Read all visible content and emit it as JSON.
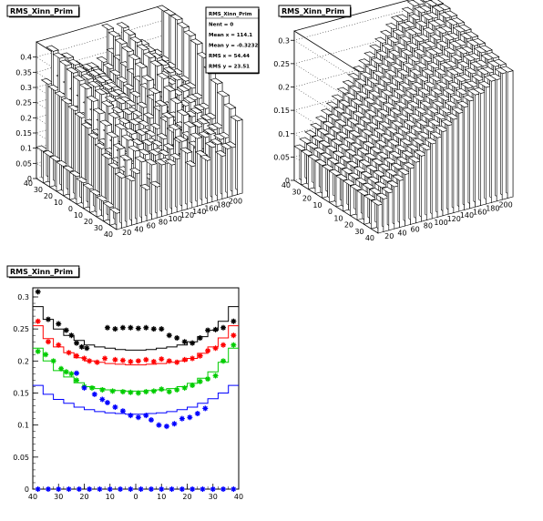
{
  "chart_data": [
    {
      "type": "lego3d",
      "title": "RMS_Xinn_Prim",
      "stats": [
        {
          "label": "RMS_Xinn_Prim",
          "value": ""
        },
        {
          "label": "Nent = 0",
          "value": ""
        },
        {
          "label": "Mean x = 114.1",
          "value": ""
        },
        {
          "label": "Mean y = -0.3232",
          "value": ""
        },
        {
          "label": "RMS x = 54.44",
          "value": ""
        },
        {
          "label": "RMS y = 23.51",
          "value": ""
        }
      ],
      "x_ticks": [
        "20",
        "40",
        "60",
        "80",
        "100",
        "120",
        "140",
        "160",
        "180",
        "200"
      ],
      "y_ticks": [
        "40",
        "30",
        "20",
        "10",
        "0",
        "10",
        "20",
        "30",
        "40"
      ],
      "z_ticks": [
        "0",
        "0.05",
        "0.1",
        "0.15",
        "0.2",
        "0.25",
        "0.3",
        "0.35",
        "0.4"
      ],
      "zlim": [
        0,
        0.45
      ],
      "front_row_heights": [
        0.11,
        0.34,
        0.45,
        0.3,
        0.34,
        0.41,
        0.21,
        0.37,
        0.21,
        0.35,
        0.35,
        0.33,
        0.36,
        0.47,
        0.38,
        0.28,
        0.46,
        0.33,
        0.29,
        0.37,
        0.38,
        0.29,
        0.33,
        0.33,
        0.5
      ],
      "grid": true
    },
    {
      "type": "lego3d",
      "title": "RMS_Xinn_Prim",
      "x_ticks": [
        "20",
        "40",
        "60",
        "80",
        "100",
        "120",
        "140",
        "160",
        "180",
        "200"
      ],
      "y_ticks": [
        "40",
        "30",
        "20",
        "10",
        "0",
        "10",
        "20",
        "30",
        "40"
      ],
      "z_ticks": [
        "0",
        "0.05",
        "0.1",
        "0.15",
        "0.2",
        "0.25",
        "0.3"
      ],
      "zlim": [
        0,
        0.32
      ],
      "front_row_heights": [
        0.06,
        0.07,
        0.08,
        0.09,
        0.1,
        0.11,
        0.12,
        0.13,
        0.14,
        0.15,
        0.16,
        0.17,
        0.18,
        0.19,
        0.2,
        0.21,
        0.22,
        0.23,
        0.24,
        0.24,
        0.25,
        0.26,
        0.26,
        0.27,
        0.27
      ],
      "grid": true
    },
    {
      "type": "step+markers",
      "title": "RMS_Xinn_Prim",
      "x_ticks": [
        "40",
        "30",
        "20",
        "10",
        "0",
        "10",
        "20",
        "30",
        "40"
      ],
      "x_tick_values": [
        -40,
        -30,
        -20,
        -10,
        0,
        10,
        20,
        30,
        40
      ],
      "y_ticks": [
        "0",
        "0.05",
        "0.1",
        "0.15",
        "0.2",
        "0.25",
        "0.3"
      ],
      "xlim": [
        -40,
        40
      ],
      "ylim": [
        0,
        0.3
      ],
      "bin_edges": [
        -40,
        -36,
        -32,
        -28,
        -24,
        -20,
        -16,
        -12,
        -8,
        -4,
        0,
        4,
        8,
        12,
        16,
        20,
        24,
        28,
        32,
        36,
        40
      ],
      "series": [
        {
          "color": "#000000",
          "step": [
            0.285,
            0.265,
            0.25,
            0.24,
            0.232,
            0.225,
            0.222,
            0.22,
            0.218,
            0.217,
            0.217,
            0.218,
            0.22,
            0.222,
            0.225,
            0.23,
            0.238,
            0.248,
            0.262,
            0.285
          ],
          "points": [
            [
              -38,
              0.308
            ],
            [
              -34,
              0.265
            ],
            [
              -30,
              0.258
            ],
            [
              -27,
              0.248
            ],
            [
              -25,
              0.24
            ],
            [
              -23,
              0.228
            ],
            [
              -21,
              0.222
            ],
            [
              -19,
              0.22
            ],
            [
              -11,
              0.252
            ],
            [
              -8,
              0.25
            ],
            [
              -5,
              0.252
            ],
            [
              -2,
              0.252
            ],
            [
              1,
              0.251
            ],
            [
              4,
              0.252
            ],
            [
              7,
              0.25
            ],
            [
              10,
              0.25
            ],
            [
              13,
              0.24
            ],
            [
              16,
              0.236
            ],
            [
              19,
              0.23
            ],
            [
              22,
              0.228
            ],
            [
              25,
              0.236
            ],
            [
              28,
              0.248
            ],
            [
              31,
              0.249
            ],
            [
              34,
              0.252
            ],
            [
              38,
              0.262
            ]
          ]
        },
        {
          "color": "#ff0000",
          "step": [
            0.255,
            0.235,
            0.222,
            0.213,
            0.205,
            0.2,
            0.198,
            0.196,
            0.195,
            0.194,
            0.194,
            0.195,
            0.196,
            0.198,
            0.2,
            0.204,
            0.212,
            0.222,
            0.236,
            0.255
          ],
          "points": [
            [
              -38,
              0.262
            ],
            [
              -34,
              0.23
            ],
            [
              -30,
              0.225
            ],
            [
              -26,
              0.213
            ],
            [
              -23,
              0.208
            ],
            [
              -20,
              0.204
            ],
            [
              -18,
              0.2
            ],
            [
              -15,
              0.198
            ],
            [
              -12,
              0.204
            ],
            [
              -8,
              0.202
            ],
            [
              -5,
              0.201
            ],
            [
              -2,
              0.199
            ],
            [
              1,
              0.2
            ],
            [
              4,
              0.202
            ],
            [
              7,
              0.199
            ],
            [
              10,
              0.203
            ],
            [
              13,
              0.2
            ],
            [
              16,
              0.198
            ],
            [
              19,
              0.202
            ],
            [
              22,
              0.204
            ],
            [
              25,
              0.208
            ],
            [
              28,
              0.216
            ],
            [
              31,
              0.22
            ],
            [
              34,
              0.225
            ],
            [
              38,
              0.24
            ]
          ]
        },
        {
          "color": "#00cc00",
          "step": [
            0.22,
            0.2,
            0.185,
            0.175,
            0.166,
            0.16,
            0.157,
            0.155,
            0.154,
            0.153,
            0.153,
            0.154,
            0.155,
            0.157,
            0.16,
            0.165,
            0.173,
            0.183,
            0.198,
            0.22
          ],
          "points": [
            [
              -38,
              0.215
            ],
            [
              -35,
              0.21
            ],
            [
              -32,
              0.2
            ],
            [
              -29,
              0.188
            ],
            [
              -27,
              0.183
            ],
            [
              -25,
              0.18
            ],
            [
              -23,
              0.17
            ],
            [
              -20,
              0.16
            ],
            [
              -17,
              0.158
            ],
            [
              -13,
              0.155
            ],
            [
              -9,
              0.153
            ],
            [
              -5,
              0.152
            ],
            [
              -2,
              0.151
            ],
            [
              1,
              0.15
            ],
            [
              4,
              0.152
            ],
            [
              7,
              0.153
            ],
            [
              10,
              0.156
            ],
            [
              13,
              0.152
            ],
            [
              16,
              0.155
            ],
            [
              19,
              0.158
            ],
            [
              22,
              0.162
            ],
            [
              25,
              0.168
            ],
            [
              28,
              0.172
            ],
            [
              31,
              0.177
            ],
            [
              34,
              0.2
            ],
            [
              38,
              0.225
            ]
          ]
        },
        {
          "color": "#0000ff",
          "step": [
            0.162,
            0.148,
            0.14,
            0.134,
            0.128,
            0.124,
            0.121,
            0.119,
            0.118,
            0.117,
            0.117,
            0.118,
            0.119,
            0.121,
            0.124,
            0.128,
            0.134,
            0.141,
            0.15,
            0.162
          ],
          "points": [
            [
              -38,
              0.0
            ],
            [
              -34,
              0.0
            ],
            [
              -30,
              0.0
            ],
            [
              -26,
              0.0
            ],
            [
              -22,
              0.0
            ],
            [
              -18,
              0.0
            ],
            [
              -14,
              0.0
            ],
            [
              -10,
              0.0
            ],
            [
              -6,
              0.0
            ],
            [
              -2,
              0.0
            ],
            [
              2,
              0.0
            ],
            [
              6,
              0.0
            ],
            [
              10,
              0.0
            ],
            [
              14,
              0.0
            ],
            [
              18,
              0.0
            ],
            [
              22,
              0.0
            ],
            [
              26,
              0.0
            ],
            [
              30,
              0.0
            ],
            [
              34,
              0.0
            ],
            [
              38,
              0.0
            ],
            [
              -23,
              0.181
            ],
            [
              -20,
              0.158
            ],
            [
              -16,
              0.148
            ],
            [
              -13,
              0.14
            ],
            [
              -11,
              0.135
            ],
            [
              -8,
              0.128
            ],
            [
              -5,
              0.122
            ],
            [
              -2,
              0.115
            ],
            [
              1,
              0.112
            ],
            [
              4,
              0.115
            ],
            [
              6,
              0.108
            ],
            [
              9,
              0.1
            ],
            [
              12,
              0.098
            ],
            [
              15,
              0.102
            ],
            [
              18,
              0.11
            ],
            [
              21,
              0.112
            ],
            [
              24,
              0.118
            ],
            [
              27,
              0.126
            ]
          ]
        }
      ],
      "grid": false
    }
  ]
}
